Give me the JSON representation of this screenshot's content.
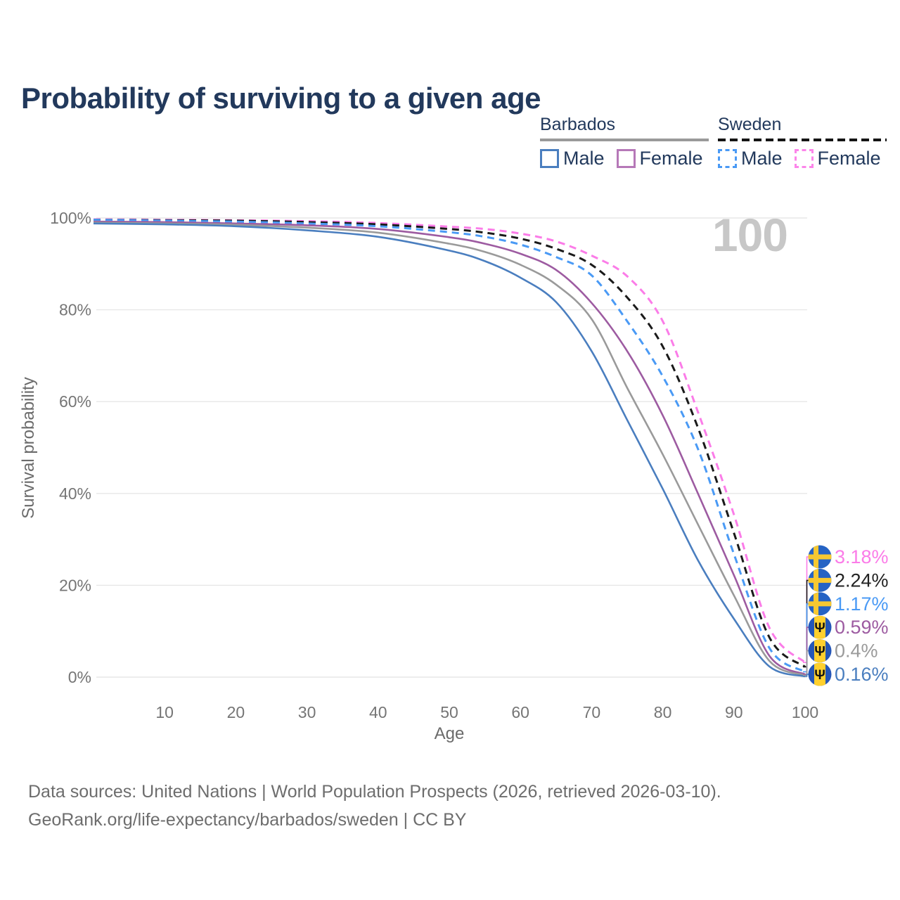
{
  "title": "Probability of surviving to a given age",
  "watermark": "100",
  "legend": {
    "groups": [
      {
        "country": "Barbados",
        "line_style": "solid",
        "underline_color": "#9a9a9a",
        "items": [
          {
            "label": "Male",
            "color": "#4a7ebf",
            "dashed": false
          },
          {
            "label": "Female",
            "color": "#b678b8",
            "dashed": false
          }
        ]
      },
      {
        "country": "Sweden",
        "line_style": "dashed",
        "underline_color": "#141414",
        "items": [
          {
            "label": "Male",
            "color": "#4a9af5",
            "dashed": true
          },
          {
            "label": "Female",
            "color": "#fc85ea",
            "dashed": true
          }
        ]
      }
    ]
  },
  "chart_data": {
    "type": "line",
    "title": "Probability of surviving to a given age",
    "xlabel": "Age",
    "ylabel": "Survival probability",
    "xlim": [
      0,
      100
    ],
    "ylim": [
      0,
      100
    ],
    "grid": "horizontal",
    "x_ticks": [
      10,
      20,
      30,
      40,
      50,
      60,
      70,
      80,
      90,
      100
    ],
    "y_ticks": [
      {
        "value": 0,
        "label": "0%"
      },
      {
        "value": 20,
        "label": "20%"
      },
      {
        "value": 40,
        "label": "40%"
      },
      {
        "value": 60,
        "label": "60%"
      },
      {
        "value": 80,
        "label": "80%"
      },
      {
        "value": 100,
        "label": "100%"
      }
    ],
    "x": [
      0,
      10,
      20,
      30,
      40,
      50,
      55,
      60,
      65,
      70,
      75,
      80,
      85,
      90,
      95,
      100
    ],
    "series": [
      {
        "name": "Sweden Female",
        "country": "Sweden",
        "sex": "Female",
        "color": "#fb7ce8",
        "dashed": true,
        "end_label": "3.18%",
        "flag": "sweden",
        "values": [
          99.7,
          99.6,
          99.5,
          99.3,
          98.9,
          98.1,
          97.6,
          96.6,
          94.9,
          91.8,
          87.3,
          77.5,
          57.5,
          35.4,
          10.7,
          3.18
        ]
      },
      {
        "name": "Sweden Both sexes",
        "country": "Sweden",
        "sex": "Both",
        "color": "#1a1a1a",
        "dashed": true,
        "end_label": "2.24%",
        "flag": "sweden",
        "values": [
          99.6,
          99.5,
          99.4,
          99.1,
          98.6,
          97.6,
          96.8,
          95.5,
          93.3,
          89.8,
          82.7,
          72.0,
          54.1,
          31.4,
          8.6,
          2.24
        ]
      },
      {
        "name": "Sweden Male",
        "country": "Sweden",
        "sex": "Male",
        "color": "#4a9af5",
        "dashed": true,
        "end_label": "1.17%",
        "flag": "sweden",
        "values": [
          99.6,
          99.4,
          99.2,
          98.8,
          98.2,
          96.9,
          95.9,
          94.2,
          91.5,
          87.5,
          77.5,
          65.5,
          49.5,
          26.8,
          6.3,
          1.17
        ]
      },
      {
        "name": "Barbados Female",
        "country": "Barbados",
        "sex": "Female",
        "color": "#9d5ba1",
        "dashed": false,
        "end_label": "0.59%",
        "flag": "barbados",
        "values": [
          99.2,
          99.1,
          98.8,
          98.4,
          97.6,
          95.8,
          94.4,
          92.2,
          88.7,
          81.5,
          71.0,
          57.0,
          39.8,
          22.2,
          4.6,
          0.59
        ]
      },
      {
        "name": "Barbados Both sexes",
        "country": "Barbados",
        "sex": "Both",
        "color": "#9a9a9a",
        "dashed": false,
        "end_label": "0.4%",
        "flag": "barbados",
        "values": [
          99.0,
          98.8,
          98.5,
          97.9,
          96.8,
          94.4,
          92.6,
          89.8,
          85.5,
          78.0,
          63.0,
          48.5,
          33.1,
          17.8,
          3.5,
          0.4
        ]
      },
      {
        "name": "Barbados Male",
        "country": "Barbados",
        "sex": "Male",
        "color": "#4a7ebf",
        "dashed": false,
        "end_label": "0.16%",
        "flag": "barbados",
        "values": [
          98.8,
          98.6,
          98.2,
          97.3,
          95.9,
          92.9,
          90.6,
          87.0,
          81.7,
          71.0,
          56.0,
          41.0,
          25.3,
          12.7,
          2.3,
          0.16
        ]
      }
    ],
    "end_label_colors": [
      "#fb7ce8",
      "#222222",
      "#4a9af5",
      "#9d5ba1",
      "#9a9a9a",
      "#4a7ebf"
    ],
    "legend_position": "top-right"
  },
  "flags": {
    "sweden": {
      "field_color": "#2563c4",
      "cross_color": "#f6c832"
    },
    "barbados": {
      "band_color": "#2456b8",
      "center_color": "#ffd02e",
      "trident_glyph": "Ψ"
    }
  },
  "footer": {
    "line1": "Data sources: United Nations | World Population Prospects (2026, retrieved 2026-03-10).",
    "line2": "GeoRank.org/life-expectancy/barbados/sweden | CC BY"
  }
}
